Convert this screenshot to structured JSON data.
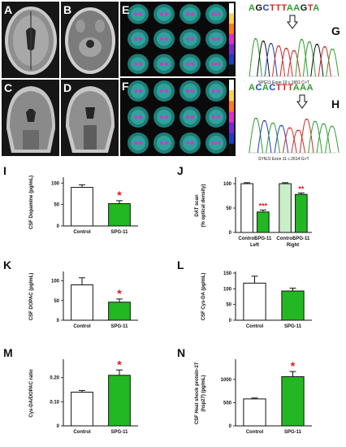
{
  "panels": {
    "A": "A",
    "B": "B",
    "C": "C",
    "D": "D",
    "E": "E",
    "F": "F",
    "G": "G",
    "H": "H",
    "I": "I",
    "J": "J",
    "K": "K",
    "L": "L",
    "M": "M",
    "N": "N"
  },
  "sequences": {
    "G": {
      "bases": [
        "A",
        "G",
        "C",
        "T",
        "T",
        "T",
        "A",
        "A",
        "G",
        "T",
        "A"
      ],
      "caption": "SPG11 Exon 10 c.1951 C>T"
    },
    "H": {
      "bases": [
        "A",
        "C",
        "A",
        "C",
        "T",
        "T",
        "T",
        "A",
        "A",
        "A"
      ],
      "caption": "SYNJ1 Exon 11 c.2614 G>T"
    }
  },
  "base_colors": {
    "A": "#2ca02c",
    "C": "#1f3fbf",
    "G": "#111111",
    "T": "#d62728"
  },
  "bar_colors": {
    "control": "#ffffff",
    "spg11": "#22b822",
    "star": "#e8141c"
  },
  "chart_data": [
    {
      "id": "I",
      "type": "bar",
      "ylabel": "CSF Dopamine (pg/mL)",
      "categories": [
        "Control",
        "SPG-11"
      ],
      "values": [
        90,
        52
      ],
      "errors": [
        6,
        7
      ],
      "ylim": [
        0,
        110
      ],
      "annotations": [
        "",
        "*"
      ]
    },
    {
      "id": "J",
      "type": "bar",
      "ylabel": "DAT scan\n(% optical density)",
      "categories": [
        "Control",
        "SPG-11",
        "Control",
        "SPG-11"
      ],
      "groups": [
        "Left",
        "Right"
      ],
      "values": [
        100,
        42,
        100,
        78
      ],
      "errors": [
        2,
        4,
        2,
        3
      ],
      "ylim": [
        0,
        110
      ],
      "annotations": [
        "",
        "***",
        "",
        "**"
      ]
    },
    {
      "id": "K",
      "type": "bar",
      "ylabel": "CSF DOPAC (pg/mL)",
      "categories": [
        "Control",
        "SPG-11"
      ],
      "values": [
        90,
        46
      ],
      "errors": [
        18,
        8
      ],
      "ylim": [
        0,
        120
      ],
      "annotations": [
        "",
        "*"
      ]
    },
    {
      "id": "L",
      "type": "bar",
      "ylabel": "CSF Cys-DA (pg/mL)",
      "categories": [
        "Control",
        "SPG-11"
      ],
      "values": [
        118,
        93
      ],
      "errors": [
        22,
        9
      ],
      "ylim": [
        0,
        150
      ],
      "annotations": [
        "",
        ""
      ]
    },
    {
      "id": "M",
      "type": "bar",
      "ylabel": "Cys-DA/DOPAC ratio",
      "categories": [
        "Control",
        "SPG-11"
      ],
      "values": [
        0.14,
        0.21
      ],
      "errors": [
        0.007,
        0.022
      ],
      "ylim": [
        0,
        0.27
      ],
      "annotations": [
        "",
        "*"
      ]
    },
    {
      "id": "N",
      "type": "bar",
      "ylabel": "CSF Heat shock protein-27\n(hsp27) (pg/mL)",
      "categories": [
        "Control",
        "SPG-11"
      ],
      "values": [
        580,
        1060
      ],
      "errors": [
        20,
        110
      ],
      "ylim": [
        0,
        1400
      ],
      "annotations": [
        "",
        "*"
      ]
    }
  ]
}
